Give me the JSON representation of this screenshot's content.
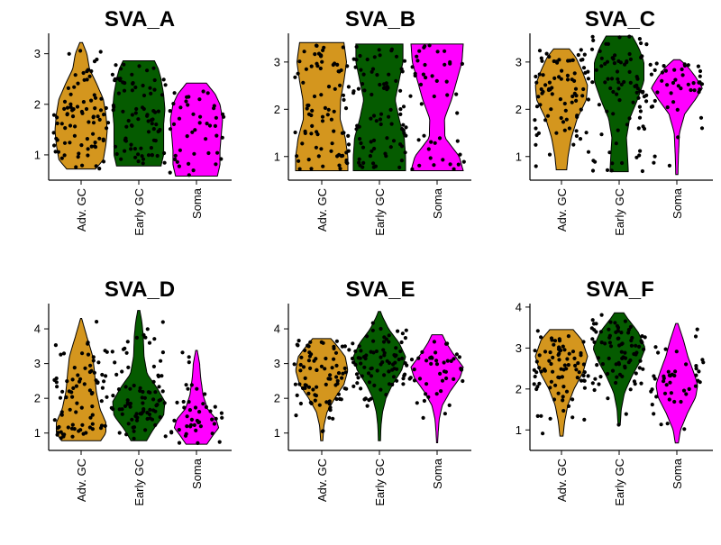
{
  "chart_data": [
    {
      "type": "violin",
      "title": "SVA_A",
      "categories": [
        "Adv. GC",
        "Early GC",
        "Soma"
      ],
      "ylim": [
        0.5,
        3.35
      ],
      "yticks": [
        1,
        2,
        3
      ],
      "violins": [
        {
          "range": [
            0.72,
            3.22
          ],
          "density": [
            [
              0.72,
              0.55
            ],
            [
              0.9,
              0.85
            ],
            [
              1.2,
              0.95
            ],
            [
              1.5,
              1.0
            ],
            [
              1.8,
              0.95
            ],
            [
              2.1,
              0.85
            ],
            [
              2.4,
              0.6
            ],
            [
              2.7,
              0.32
            ],
            [
              3.0,
              0.22
            ],
            [
              3.22,
              0.05
            ]
          ]
        },
        {
          "range": [
            0.78,
            2.86
          ],
          "density": [
            [
              0.78,
              0.85
            ],
            [
              1.0,
              0.95
            ],
            [
              1.3,
              0.95
            ],
            [
              1.6,
              0.95
            ],
            [
              1.9,
              1.0
            ],
            [
              2.2,
              0.95
            ],
            [
              2.5,
              0.85
            ],
            [
              2.7,
              0.75
            ],
            [
              2.86,
              0.6
            ]
          ]
        },
        {
          "range": [
            0.58,
            2.42
          ],
          "density": [
            [
              0.58,
              0.8
            ],
            [
              0.8,
              0.9
            ],
            [
              1.1,
              0.9
            ],
            [
              1.4,
              0.95
            ],
            [
              1.7,
              1.0
            ],
            [
              2.0,
              0.9
            ],
            [
              2.2,
              0.72
            ],
            [
              2.42,
              0.38
            ]
          ]
        }
      ]
    },
    {
      "type": "violin",
      "title": "SVA_B",
      "categories": [
        "Adv. GC",
        "Early GC",
        "Soma"
      ],
      "ylim": [
        0.5,
        3.55
      ],
      "yticks": [
        1,
        2,
        3
      ],
      "violins": [
        {
          "range": [
            0.7,
            3.41
          ],
          "density": [
            [
              0.7,
              1.0
            ],
            [
              1.0,
              1.0
            ],
            [
              1.4,
              0.9
            ],
            [
              1.8,
              0.7
            ],
            [
              2.2,
              0.72
            ],
            [
              2.6,
              0.85
            ],
            [
              3.0,
              0.95
            ],
            [
              3.41,
              0.85
            ]
          ]
        },
        {
          "range": [
            0.7,
            3.38
          ],
          "density": [
            [
              0.7,
              1.0
            ],
            [
              1.0,
              1.0
            ],
            [
              1.4,
              0.95
            ],
            [
              1.8,
              0.75
            ],
            [
              2.2,
              0.6
            ],
            [
              2.6,
              0.75
            ],
            [
              3.0,
              0.9
            ],
            [
              3.38,
              0.9
            ]
          ]
        },
        {
          "range": [
            0.7,
            3.38
          ],
          "density": [
            [
              0.7,
              1.0
            ],
            [
              1.0,
              0.85
            ],
            [
              1.4,
              0.3
            ],
            [
              1.8,
              0.28
            ],
            [
              2.2,
              0.55
            ],
            [
              2.6,
              0.75
            ],
            [
              3.0,
              0.95
            ],
            [
              3.38,
              1.0
            ]
          ]
        }
      ]
    },
    {
      "type": "violin",
      "title": "SVA_C",
      "categories": [
        "Adv. GC",
        "Early GC",
        "Soma"
      ],
      "ylim": [
        0.5,
        3.55
      ],
      "yticks": [
        1,
        2,
        3
      ],
      "violins": [
        {
          "range": [
            0.72,
            3.28
          ],
          "density": [
            [
              0.72,
              0.2
            ],
            [
              1.0,
              0.25
            ],
            [
              1.4,
              0.38
            ],
            [
              1.8,
              0.6
            ],
            [
              2.2,
              0.95
            ],
            [
              2.5,
              1.0
            ],
            [
              2.8,
              0.8
            ],
            [
              3.1,
              0.55
            ],
            [
              3.28,
              0.3
            ]
          ]
        },
        {
          "range": [
            0.68,
            3.55
          ],
          "density": [
            [
              0.68,
              0.35
            ],
            [
              1.0,
              0.32
            ],
            [
              1.4,
              0.28
            ],
            [
              1.8,
              0.4
            ],
            [
              2.2,
              0.7
            ],
            [
              2.6,
              0.95
            ],
            [
              3.0,
              0.95
            ],
            [
              3.3,
              0.75
            ],
            [
              3.55,
              0.5
            ]
          ]
        },
        {
          "range": [
            0.62,
            3.05
          ],
          "density": [
            [
              0.62,
              0.04
            ],
            [
              1.0,
              0.06
            ],
            [
              1.5,
              0.1
            ],
            [
              1.9,
              0.3
            ],
            [
              2.2,
              0.7
            ],
            [
              2.45,
              0.98
            ],
            [
              2.7,
              0.7
            ],
            [
              2.9,
              0.42
            ],
            [
              3.05,
              0.12
            ]
          ]
        }
      ]
    },
    {
      "type": "violin",
      "title": "SVA_D",
      "categories": [
        "Adv. GC",
        "Early GC",
        "Soma"
      ],
      "ylim": [
        0.5,
        4.65
      ],
      "yticks": [
        1,
        2,
        3,
        4
      ],
      "violins": [
        {
          "range": [
            0.78,
            4.3
          ],
          "density": [
            [
              0.78,
              0.75
            ],
            [
              1.0,
              0.95
            ],
            [
              1.3,
              0.95
            ],
            [
              1.7,
              0.72
            ],
            [
              2.2,
              0.58
            ],
            [
              2.7,
              0.52
            ],
            [
              3.2,
              0.45
            ],
            [
              3.7,
              0.25
            ],
            [
              4.3,
              0.02
            ]
          ]
        },
        {
          "range": [
            0.78,
            4.53
          ],
          "density": [
            [
              0.78,
              0.3
            ],
            [
              1.1,
              0.55
            ],
            [
              1.5,
              0.95
            ],
            [
              1.9,
              1.0
            ],
            [
              2.3,
              0.7
            ],
            [
              2.7,
              0.32
            ],
            [
              3.2,
              0.2
            ],
            [
              3.8,
              0.17
            ],
            [
              4.2,
              0.12
            ],
            [
              4.53,
              0.04
            ]
          ]
        },
        {
          "range": [
            0.68,
            3.38
          ],
          "density": [
            [
              0.68,
              0.4
            ],
            [
              0.9,
              0.6
            ],
            [
              1.15,
              0.85
            ],
            [
              1.4,
              0.75
            ],
            [
              1.7,
              0.42
            ],
            [
              2.1,
              0.25
            ],
            [
              2.6,
              0.16
            ],
            [
              3.0,
              0.12
            ],
            [
              3.38,
              0.03
            ]
          ]
        }
      ]
    },
    {
      "type": "violin",
      "title": "SVA_E",
      "categories": [
        "Adv. GC",
        "Early GC",
        "Soma"
      ],
      "ylim": [
        0.5,
        4.65
      ],
      "yticks": [
        1,
        2,
        3,
        4
      ],
      "violins": [
        {
          "range": [
            0.78,
            3.72
          ],
          "density": [
            [
              0.78,
              0.04
            ],
            [
              1.2,
              0.08
            ],
            [
              1.6,
              0.2
            ],
            [
              2.0,
              0.5
            ],
            [
              2.4,
              0.85
            ],
            [
              2.8,
              1.0
            ],
            [
              3.2,
              0.9
            ],
            [
              3.5,
              0.6
            ],
            [
              3.72,
              0.35
            ]
          ]
        },
        {
          "range": [
            0.78,
            4.5
          ],
          "density": [
            [
              0.78,
              0.04
            ],
            [
              1.2,
              0.06
            ],
            [
              1.6,
              0.12
            ],
            [
              2.0,
              0.25
            ],
            [
              2.4,
              0.5
            ],
            [
              2.8,
              0.85
            ],
            [
              3.2,
              1.0
            ],
            [
              3.6,
              0.75
            ],
            [
              4.0,
              0.35
            ],
            [
              4.3,
              0.15
            ],
            [
              4.5,
              0.04
            ]
          ]
        },
        {
          "range": [
            0.72,
            3.83
          ],
          "density": [
            [
              0.72,
              0.02
            ],
            [
              1.0,
              0.04
            ],
            [
              1.4,
              0.08
            ],
            [
              1.8,
              0.2
            ],
            [
              2.2,
              0.5
            ],
            [
              2.6,
              0.88
            ],
            [
              2.9,
              1.0
            ],
            [
              3.3,
              0.6
            ],
            [
              3.6,
              0.35
            ],
            [
              3.83,
              0.2
            ]
          ]
        }
      ]
    },
    {
      "type": "violin",
      "title": "SVA_F",
      "categories": [
        "Adv. GC",
        "Early GC",
        "Soma"
      ],
      "ylim": [
        0.5,
        4.02
      ],
      "yticks": [
        1,
        2,
        3,
        4
      ],
      "violins": [
        {
          "range": [
            0.85,
            3.45
          ],
          "density": [
            [
              0.85,
              0.06
            ],
            [
              1.2,
              0.12
            ],
            [
              1.6,
              0.24
            ],
            [
              2.0,
              0.48
            ],
            [
              2.4,
              0.82
            ],
            [
              2.8,
              1.0
            ],
            [
              3.2,
              0.78
            ],
            [
              3.45,
              0.45
            ]
          ]
        },
        {
          "range": [
            1.12,
            3.86
          ],
          "density": [
            [
              1.12,
              0.04
            ],
            [
              1.5,
              0.08
            ],
            [
              1.9,
              0.2
            ],
            [
              2.3,
              0.48
            ],
            [
              2.7,
              0.82
            ],
            [
              3.0,
              1.0
            ],
            [
              3.4,
              0.72
            ],
            [
              3.7,
              0.35
            ],
            [
              3.86,
              0.18
            ]
          ]
        },
        {
          "range": [
            0.68,
            3.6
          ],
          "density": [
            [
              0.68,
              0.06
            ],
            [
              1.0,
              0.14
            ],
            [
              1.4,
              0.4
            ],
            [
              1.8,
              0.72
            ],
            [
              2.1,
              0.8
            ],
            [
              2.4,
              0.65
            ],
            [
              2.8,
              0.42
            ],
            [
              3.2,
              0.25
            ],
            [
              3.6,
              0.04
            ]
          ]
        }
      ]
    }
  ],
  "colors": [
    "#D4961E",
    "#055B00",
    "#FF00FF"
  ],
  "point_color": "#000000"
}
